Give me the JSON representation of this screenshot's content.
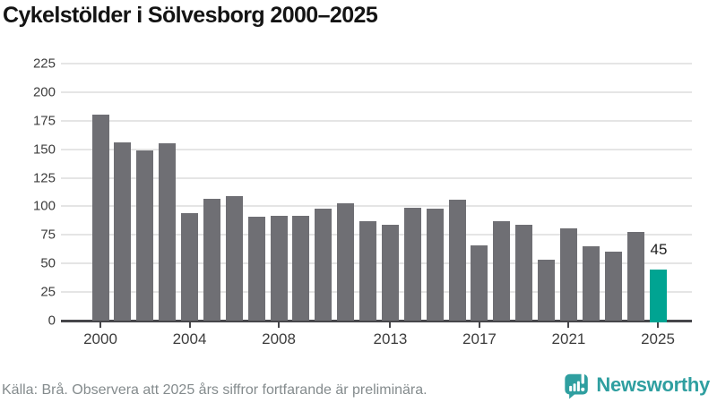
{
  "title": "Cykelstölder i Sölvesborg 2000–2025",
  "chart_data": {
    "type": "bar",
    "title": "Cykelstölder i Sölvesborg 2000–2025",
    "categories": [
      2000,
      2001,
      2002,
      2003,
      2004,
      2005,
      2006,
      2007,
      2008,
      2009,
      2010,
      2011,
      2012,
      2013,
      2014,
      2015,
      2016,
      2017,
      2018,
      2019,
      2020,
      2021,
      2022,
      2023,
      2024,
      2025
    ],
    "values": [
      180,
      156,
      149,
      155,
      94,
      107,
      109,
      91,
      92,
      92,
      98,
      103,
      87,
      84,
      99,
      98,
      106,
      66,
      87,
      84,
      53,
      81,
      65,
      60,
      78,
      45
    ],
    "highlight_category": 2025,
    "highlight_value_label": "45",
    "xlabel": "",
    "ylabel": "",
    "ylim": [
      0,
      225
    ],
    "yticks": [
      0,
      25,
      50,
      75,
      100,
      125,
      150,
      175,
      200,
      225
    ],
    "xticks": [
      2000,
      2004,
      2008,
      2013,
      2017,
      2021,
      2025
    ],
    "grid": true,
    "legend": "none",
    "bar_color": "#6f6f74",
    "highlight_color": "#00a492"
  },
  "footer": {
    "source_note": "Källa: Brå. Observera att 2025 års siffror fortfarande är preliminära."
  },
  "logo": {
    "name": "Newsworthy",
    "icon": "newsworthy-speech-bubble-chart-icon",
    "color": "#2f9fa0"
  }
}
